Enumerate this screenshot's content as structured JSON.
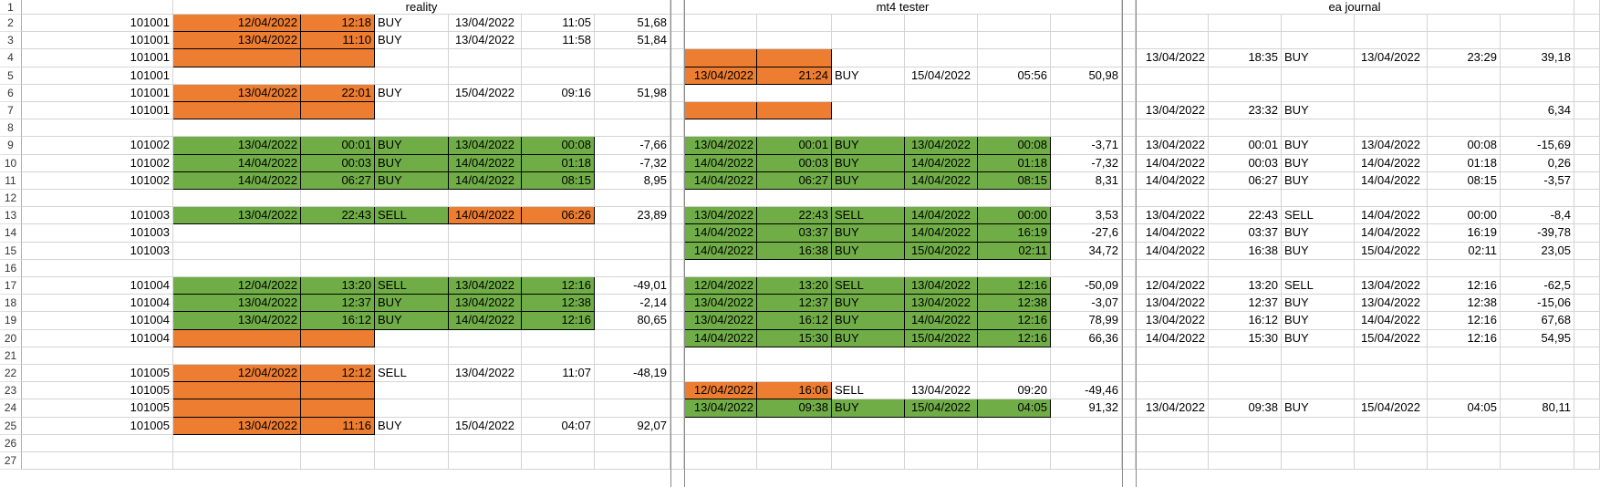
{
  "row_numbers": [
    "1",
    "2",
    "3",
    "4",
    "5",
    "6",
    "7",
    "8",
    "9",
    "10",
    "11",
    "12",
    "13",
    "14",
    "15",
    "16",
    "17",
    "18",
    "19",
    "20",
    "21",
    "22",
    "23",
    "24",
    "25",
    "26",
    "27"
  ],
  "groups": [
    "reality",
    "mt4 tester",
    "ea journal"
  ],
  "rows": [
    {
      "id": "101001",
      "reality": [
        "12/04/2022",
        "12:18",
        "BUY",
        "13/04/2022",
        "11:05",
        "51,68"
      ],
      "tester": [
        "",
        "",
        "",
        "",
        "",
        "",
        ""
      ],
      "journal": [
        "",
        "",
        "",
        "",
        "",
        "",
        ""
      ],
      "rf": [
        "o",
        "o"
      ],
      "tf": [
        "",
        "",
        "",
        "",
        "",
        ""
      ]
    },
    {
      "id": "101001",
      "reality": [
        "13/04/2022",
        "11:10",
        "BUY",
        "13/04/2022",
        "11:58",
        "51,84"
      ],
      "tester": [
        "",
        "",
        "",
        "",
        "",
        "",
        ""
      ],
      "journal": [
        "",
        "",
        "",
        "",
        "",
        "",
        ""
      ],
      "rf": [
        "o",
        "o"
      ],
      "tf": [
        "",
        "",
        "",
        "",
        "",
        ""
      ]
    },
    {
      "id": "101001",
      "reality": [
        "",
        "",
        "",
        "",
        "",
        ""
      ],
      "tester": [
        "",
        "",
        "",
        "",
        "",
        "",
        ""
      ],
      "journal": [
        "13/04/2022",
        "18:35",
        "BUY",
        "13/04/2022",
        "23:29",
        "39,18"
      ],
      "rf": [
        "o",
        "o"
      ],
      "tf": [
        "o",
        "o",
        "",
        "",
        "",
        ""
      ]
    },
    {
      "id": "101001",
      "reality": [
        "",
        "",
        "",
        "",
        "",
        ""
      ],
      "tester": [
        "13/04/2022",
        "21:24",
        "BUY",
        "15/04/2022",
        "05:56",
        "50,98"
      ],
      "journal": [
        "",
        "",
        "",
        "",
        "",
        ""
      ],
      "rf": [
        "",
        ""
      ],
      "tf": [
        "o",
        "o",
        "",
        "",
        "",
        ""
      ]
    },
    {
      "id": "101001",
      "reality": [
        "13/04/2022",
        "22:01",
        "BUY",
        "15/04/2022",
        "09:16",
        "51,98"
      ],
      "tester": [
        "",
        "",
        "",
        "",
        "",
        ""
      ],
      "journal": [
        "",
        "",
        "",
        "",
        "",
        ""
      ],
      "rf": [
        "o",
        "o"
      ],
      "tf": [
        "",
        "",
        "",
        "",
        "",
        ""
      ]
    },
    {
      "id": "101001",
      "reality": [
        "",
        "",
        "",
        "",
        "",
        ""
      ],
      "tester": [
        "",
        "",
        "",
        "",
        "",
        ""
      ],
      "journal": [
        "13/04/2022",
        "23:32",
        "BUY",
        "",
        "",
        "6,34"
      ],
      "rf": [
        "o",
        "o"
      ],
      "tf": [
        "o",
        "o",
        "",
        "",
        "",
        ""
      ]
    },
    {
      "id": "",
      "reality": [
        "",
        "",
        "",
        "",
        "",
        ""
      ],
      "tester": [
        "",
        "",
        "",
        "",
        "",
        ""
      ],
      "journal": [
        "",
        "",
        "",
        "",
        "",
        ""
      ],
      "rf": [
        "",
        ""
      ],
      "tf": [
        "",
        "",
        "",
        "",
        "",
        ""
      ]
    },
    {
      "id": "101002",
      "reality": [
        "13/04/2022",
        "00:01",
        "BUY",
        "13/04/2022",
        "00:08",
        "-7,66"
      ],
      "tester": [
        "13/04/2022",
        "00:01",
        "BUY",
        "13/04/2022",
        "00:08",
        "-3,71"
      ],
      "journal": [
        "13/04/2022",
        "00:01",
        "BUY",
        "13/04/2022",
        "00:08",
        "-15,69"
      ],
      "rf": [
        "g",
        "g",
        "g",
        "g",
        "g"
      ],
      "tf": [
        "g",
        "g",
        "g",
        "g",
        "g",
        ""
      ]
    },
    {
      "id": "101002",
      "reality": [
        "14/04/2022",
        "00:03",
        "BUY",
        "14/04/2022",
        "01:18",
        "-7,32"
      ],
      "tester": [
        "14/04/2022",
        "00:03",
        "BUY",
        "14/04/2022",
        "01:18",
        "-7,32"
      ],
      "journal": [
        "14/04/2022",
        "00:03",
        "BUY",
        "14/04/2022",
        "01:18",
        "0,26"
      ],
      "rf": [
        "g",
        "g",
        "g",
        "g",
        "g"
      ],
      "tf": [
        "g",
        "g",
        "g",
        "g",
        "g",
        ""
      ]
    },
    {
      "id": "101002",
      "reality": [
        "14/04/2022",
        "06:27",
        "BUY",
        "14/04/2022",
        "08:15",
        "8,95"
      ],
      "tester": [
        "14/04/2022",
        "06:27",
        "BUY",
        "14/04/2022",
        "08:15",
        "8,31"
      ],
      "journal": [
        "14/04/2022",
        "06:27",
        "BUY",
        "14/04/2022",
        "08:15",
        "-3,57"
      ],
      "rf": [
        "g",
        "g",
        "g",
        "g",
        "g"
      ],
      "tf": [
        "g",
        "g",
        "g",
        "g",
        "g",
        ""
      ]
    },
    {
      "id": "",
      "reality": [
        "",
        "",
        "",
        "",
        "",
        ""
      ],
      "tester": [
        "",
        "",
        "",
        "",
        "",
        ""
      ],
      "journal": [
        "",
        "",
        "",
        "",
        "",
        ""
      ],
      "rf": [
        "",
        ""
      ],
      "tf": [
        "",
        "",
        "",
        "",
        "",
        ""
      ]
    },
    {
      "id": "101003",
      "reality": [
        "13/04/2022",
        "22:43",
        "SELL",
        "14/04/2022",
        "06:26",
        "23,89"
      ],
      "tester": [
        "13/04/2022",
        "22:43",
        "SELL",
        "14/04/2022",
        "00:00",
        "3,53"
      ],
      "journal": [
        "13/04/2022",
        "22:43",
        "SELL",
        "14/04/2022",
        "00:00",
        "-8,4"
      ],
      "rf": [
        "g",
        "g",
        "g",
        "o",
        "o"
      ],
      "tf": [
        "g",
        "g",
        "g",
        "g",
        "g",
        ""
      ]
    },
    {
      "id": "101003",
      "reality": [
        "",
        "",
        "",
        "",
        "",
        ""
      ],
      "tester": [
        "14/04/2022",
        "03:37",
        "BUY",
        "14/04/2022",
        "16:19",
        "-27,6"
      ],
      "journal": [
        "14/04/2022",
        "03:37",
        "BUY",
        "14/04/2022",
        "16:19",
        "-39,78"
      ],
      "rf": [
        "",
        ""
      ],
      "tf": [
        "g",
        "g",
        "g",
        "g",
        "g",
        ""
      ]
    },
    {
      "id": "101003",
      "reality": [
        "",
        "",
        "",
        "",
        "",
        ""
      ],
      "tester": [
        "14/04/2022",
        "16:38",
        "BUY",
        "15/04/2022",
        "02:11",
        "34,72"
      ],
      "journal": [
        "14/04/2022",
        "16:38",
        "BUY",
        "15/04/2022",
        "02:11",
        "23,05"
      ],
      "rf": [
        "",
        ""
      ],
      "tf": [
        "g",
        "g",
        "g",
        "g",
        "g",
        ""
      ]
    },
    {
      "id": "",
      "reality": [
        "",
        "",
        "",
        "",
        "",
        ""
      ],
      "tester": [
        "",
        "",
        "",
        "",
        "",
        ""
      ],
      "journal": [
        "",
        "",
        "",
        "",
        "",
        ""
      ],
      "rf": [
        "",
        ""
      ],
      "tf": [
        "",
        "",
        "",
        "",
        "",
        ""
      ]
    },
    {
      "id": "101004",
      "reality": [
        "12/04/2022",
        "13:20",
        "SELL",
        "13/04/2022",
        "12:16",
        "-49,01"
      ],
      "tester": [
        "12/04/2022",
        "13:20",
        "SELL",
        "13/04/2022",
        "12:16",
        "-50,09"
      ],
      "journal": [
        "12/04/2022",
        "13:20",
        "SELL",
        "13/04/2022",
        "12:16",
        "-62,5"
      ],
      "rf": [
        "g",
        "g",
        "g",
        "g",
        "g"
      ],
      "tf": [
        "g",
        "g",
        "g",
        "g",
        "g",
        ""
      ]
    },
    {
      "id": "101004",
      "reality": [
        "13/04/2022",
        "12:37",
        "BUY",
        "13/04/2022",
        "12:38",
        "-2,14"
      ],
      "tester": [
        "13/04/2022",
        "12:37",
        "BUY",
        "13/04/2022",
        "12:38",
        "-3,07"
      ],
      "journal": [
        "13/04/2022",
        "12:37",
        "BUY",
        "13/04/2022",
        "12:38",
        "-15,06"
      ],
      "rf": [
        "g",
        "g",
        "g",
        "g",
        "g"
      ],
      "tf": [
        "g",
        "g",
        "g",
        "g",
        "g",
        ""
      ]
    },
    {
      "id": "101004",
      "reality": [
        "13/04/2022",
        "16:12",
        "BUY",
        "14/04/2022",
        "12:16",
        "80,65"
      ],
      "tester": [
        "13/04/2022",
        "16:12",
        "BUY",
        "14/04/2022",
        "12:16",
        "78,99"
      ],
      "journal": [
        "13/04/2022",
        "16:12",
        "BUY",
        "14/04/2022",
        "12:16",
        "67,68"
      ],
      "rf": [
        "g",
        "g",
        "g",
        "g",
        "g"
      ],
      "tf": [
        "g",
        "g",
        "g",
        "g",
        "g",
        ""
      ]
    },
    {
      "id": "101004",
      "reality": [
        "",
        "",
        "",
        "",
        "",
        ""
      ],
      "tester": [
        "14/04/2022",
        "15:30",
        "BUY",
        "15/04/2022",
        "12:16",
        "66,36"
      ],
      "journal": [
        "14/04/2022",
        "15:30",
        "BUY",
        "15/04/2022",
        "12:16",
        "54,95"
      ],
      "rf": [
        "o",
        "o"
      ],
      "tf": [
        "g",
        "g",
        "g",
        "g",
        "g",
        ""
      ]
    },
    {
      "id": "",
      "reality": [
        "",
        "",
        "",
        "",
        "",
        ""
      ],
      "tester": [
        "",
        "",
        "",
        "",
        "",
        ""
      ],
      "journal": [
        "",
        "",
        "",
        "",
        "",
        ""
      ],
      "rf": [
        "",
        ""
      ],
      "tf": [
        "",
        "",
        "",
        "",
        "",
        ""
      ]
    },
    {
      "id": "101005",
      "reality": [
        "12/04/2022",
        "12:12",
        "SELL",
        "13/04/2022",
        "11:07",
        "-48,19"
      ],
      "tester": [
        "",
        "",
        "",
        "",
        "",
        ""
      ],
      "journal": [
        "",
        "",
        "",
        "",
        "",
        ""
      ],
      "rf": [
        "o",
        "o"
      ],
      "tf": [
        "",
        "",
        "",
        "",
        "",
        ""
      ]
    },
    {
      "id": "101005",
      "reality": [
        "",
        "",
        "",
        "",
        "",
        ""
      ],
      "tester": [
        "12/04/2022",
        "16:06",
        "SELL",
        "13/04/2022",
        "09:20",
        "-49,46"
      ],
      "journal": [
        "",
        "",
        "",
        "",
        "",
        ""
      ],
      "rf": [
        "o",
        "o"
      ],
      "tf": [
        "o",
        "o",
        "",
        "",
        "",
        ""
      ]
    },
    {
      "id": "101005",
      "reality": [
        "",
        "",
        "",
        "",
        "",
        ""
      ],
      "tester": [
        "13/04/2022",
        "09:38",
        "BUY",
        "15/04/2022",
        "04:05",
        "91,32"
      ],
      "journal": [
        "13/04/2022",
        "09:38",
        "BUY",
        "15/04/2022",
        "04:05",
        "80,11"
      ],
      "rf": [
        "o",
        "o"
      ],
      "tf": [
        "g",
        "g",
        "g",
        "g",
        "g",
        ""
      ]
    },
    {
      "id": "101005",
      "reality": [
        "13/04/2022",
        "11:16",
        "BUY",
        "15/04/2022",
        "04:07",
        "92,07"
      ],
      "tester": [
        "",
        "",
        "",
        "",
        "",
        ""
      ],
      "journal": [
        "",
        "",
        "",
        "",
        "",
        ""
      ],
      "rf": [
        "o",
        "o"
      ],
      "tf": [
        "",
        "",
        "",
        "",
        "",
        ""
      ]
    },
    {
      "id": "",
      "reality": [
        "",
        "",
        "",
        "",
        "",
        ""
      ],
      "tester": [
        "",
        "",
        "",
        "",
        "",
        ""
      ],
      "journal": [
        "",
        "",
        "",
        "",
        "",
        ""
      ],
      "rf": [
        "",
        ""
      ],
      "tf": [
        "",
        "",
        "",
        "",
        "",
        ""
      ]
    },
    {
      "id": "",
      "reality": [
        "",
        "",
        "",
        "",
        "",
        ""
      ],
      "tester": [
        "",
        "",
        "",
        "",
        "",
        ""
      ],
      "journal": [
        "",
        "",
        "",
        "",
        "",
        ""
      ],
      "rf": [
        "",
        ""
      ],
      "tf": [
        "",
        "",
        "",
        "",
        "",
        ""
      ]
    }
  ],
  "colors": {
    "orange": "#ed7d31",
    "green": "#70ad47",
    "gridline": "#d4d4d4"
  }
}
